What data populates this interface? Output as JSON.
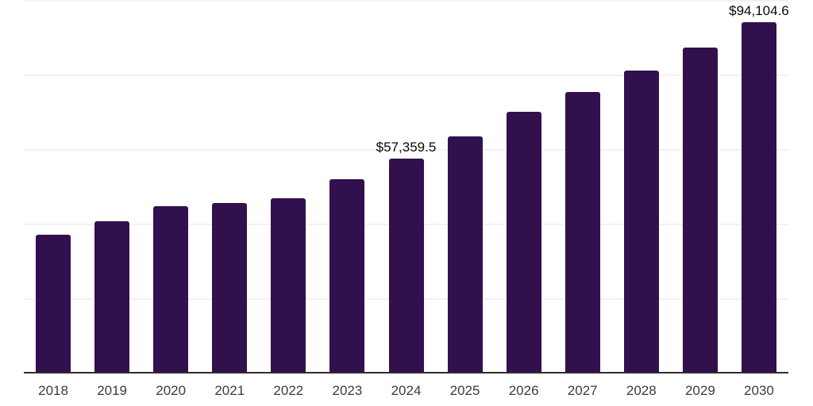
{
  "chart_data": {
    "type": "bar",
    "categories": [
      "2018",
      "2019",
      "2020",
      "2021",
      "2022",
      "2023",
      "2024",
      "2025",
      "2026",
      "2027",
      "2028",
      "2029",
      "2030"
    ],
    "values": [
      37000,
      40700,
      44600,
      45500,
      46900,
      52000,
      57359.5,
      63500,
      70000,
      75400,
      81000,
      87300,
      94104.6
    ],
    "value_labels": [
      {
        "category": "2024",
        "text": "$57,359.5"
      },
      {
        "category": "2030",
        "text": "$94,104.6"
      }
    ],
    "title": "",
    "xlabel": "",
    "ylabel": "",
    "ylim": [
      0,
      100000
    ],
    "gridline_step": 20000,
    "grid": "horizontal",
    "legend": "none",
    "y_axis_tick_labels": "none"
  },
  "colors": {
    "bar_fill": "#32104d",
    "grid_line": "#f2f2f2",
    "axis_line": "#2e2e2e",
    "tick_label": "#3b3b3b",
    "value_label": "#0a0a0a",
    "background": "#ffffff"
  }
}
